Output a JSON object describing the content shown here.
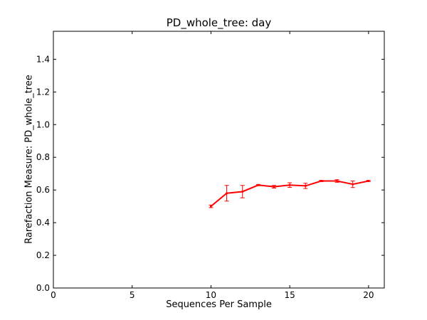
{
  "chart_data": {
    "type": "line",
    "title": "PD_whole_tree: day",
    "xlabel": "Sequences Per Sample",
    "ylabel": "Rarefaction Measure: PD_whole_tree",
    "xlim": [
      0,
      21
    ],
    "ylim": [
      0,
      1.5714
    ],
    "xticks": [
      0,
      5,
      10,
      15,
      20
    ],
    "xtick_labels": [
      "0",
      "5",
      "10",
      "15",
      "20"
    ],
    "yticks": [
      0.0,
      0.2,
      0.4,
      0.6,
      0.8,
      1.0,
      1.2,
      1.4
    ],
    "ytick_labels": [
      "0.0",
      "0.2",
      "0.4",
      "0.6",
      "0.8",
      "1.0",
      "1.2",
      "1.4"
    ],
    "grid": false,
    "series": [
      {
        "color": "#ff0000",
        "x": [
          10,
          11,
          12,
          13,
          14,
          15,
          16,
          17,
          18,
          19,
          20
        ],
        "y": [
          0.5,
          0.58,
          0.59,
          0.63,
          0.62,
          0.63,
          0.625,
          0.655,
          0.655,
          0.635,
          0.655
        ],
        "err": [
          0.008,
          0.048,
          0.038,
          0.004,
          0.008,
          0.014,
          0.016,
          0.004,
          0.008,
          0.02,
          0.004
        ]
      }
    ]
  }
}
